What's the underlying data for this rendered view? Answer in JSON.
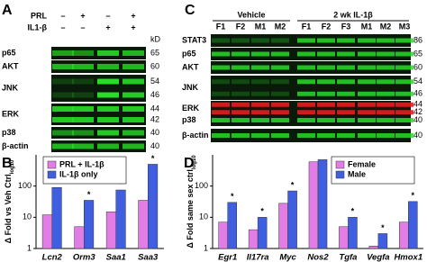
{
  "panel_labels": [
    "A",
    "C",
    "B",
    "D"
  ],
  "blot_a": {
    "treatments": [
      {
        "label": "PRL",
        "signs": [
          "–",
          "+",
          "–",
          "+"
        ]
      },
      {
        "label": "IL1-β",
        "signs": [
          "–",
          "–",
          "+",
          "+"
        ]
      }
    ],
    "kd_unit": "kD",
    "rows": [
      {
        "label": "p65",
        "kd": [
          "65"
        ]
      },
      {
        "label": "AKT",
        "kd": [
          "60"
        ]
      },
      {
        "label": "JNK",
        "kd": [
          "54",
          "46"
        ]
      },
      {
        "label": "ERK",
        "kd": [
          "44",
          "42"
        ]
      },
      {
        "label": "p38",
        "kd": [
          "40"
        ]
      },
      {
        "label": "β-actin",
        "kd": [
          "40"
        ]
      }
    ]
  },
  "blot_c": {
    "groups": [
      "Vehicle",
      "2 wk IL-1β"
    ],
    "kd_unit": "kD",
    "lanes": [
      "F1",
      "F2",
      "M1",
      "M2",
      "F1",
      "F2",
      "F3",
      "M1",
      "M2",
      "M3"
    ],
    "rows": [
      {
        "label": "STAT3",
        "kd": [
          "86"
        ]
      },
      {
        "label": "p65",
        "kd": [
          "65"
        ]
      },
      {
        "label": "AKT",
        "kd": [
          "60"
        ]
      },
      {
        "label": "JNK",
        "kd": [
          "54",
          "46"
        ]
      },
      {
        "label": "ERK",
        "kd": [
          "44",
          "42"
        ]
      },
      {
        "label": "p38",
        "kd": [
          "40"
        ]
      },
      {
        "label": "β-actin",
        "kd": [
          "40"
        ]
      }
    ]
  },
  "chart_data": [
    {
      "type": "bar",
      "y_label": "Δ Fold vs Veh Ctrl",
      "y_label_sub": "log10",
      "log": true,
      "categories": [
        "Lcn2",
        "Orm3",
        "Saa1",
        "Saa3"
      ],
      "series": [
        {
          "name": "PRL + IL-1β",
          "color": "#e27de6",
          "values": [
            12,
            5,
            15,
            35
          ]
        },
        {
          "name": "IL-1β only",
          "color": "#3f5fe0",
          "values": [
            90,
            35,
            75,
            500
          ]
        }
      ],
      "ylim": [
        1,
        1000
      ],
      "yticks": [
        1,
        10,
        100
      ],
      "significance_marker": "*",
      "significant": [
        true,
        true,
        true,
        true
      ],
      "legend": "upper left"
    },
    {
      "type": "bar",
      "y_label": "Δ Fold same sex ctrl",
      "y_label_sub": "log10",
      "log": true,
      "categories": [
        "Egr1",
        "Il17ra",
        "Myc",
        "Nos2",
        "Tgfa",
        "Vegfa",
        "Hmox1"
      ],
      "series": [
        {
          "name": "Female",
          "color": "#e27de6",
          "values": [
            7,
            4,
            28,
            600,
            5,
            1.2,
            7
          ]
        },
        {
          "name": "Male",
          "color": "#3f5fe0",
          "values": [
            30,
            10,
            70,
            700,
            10,
            3,
            32
          ]
        }
      ],
      "ylim": [
        1,
        1000
      ],
      "yticks": [
        1,
        10,
        100
      ],
      "significance_marker": "*",
      "significant": [
        true,
        true,
        true,
        false,
        true,
        true,
        true
      ],
      "legend": "upper right"
    }
  ]
}
